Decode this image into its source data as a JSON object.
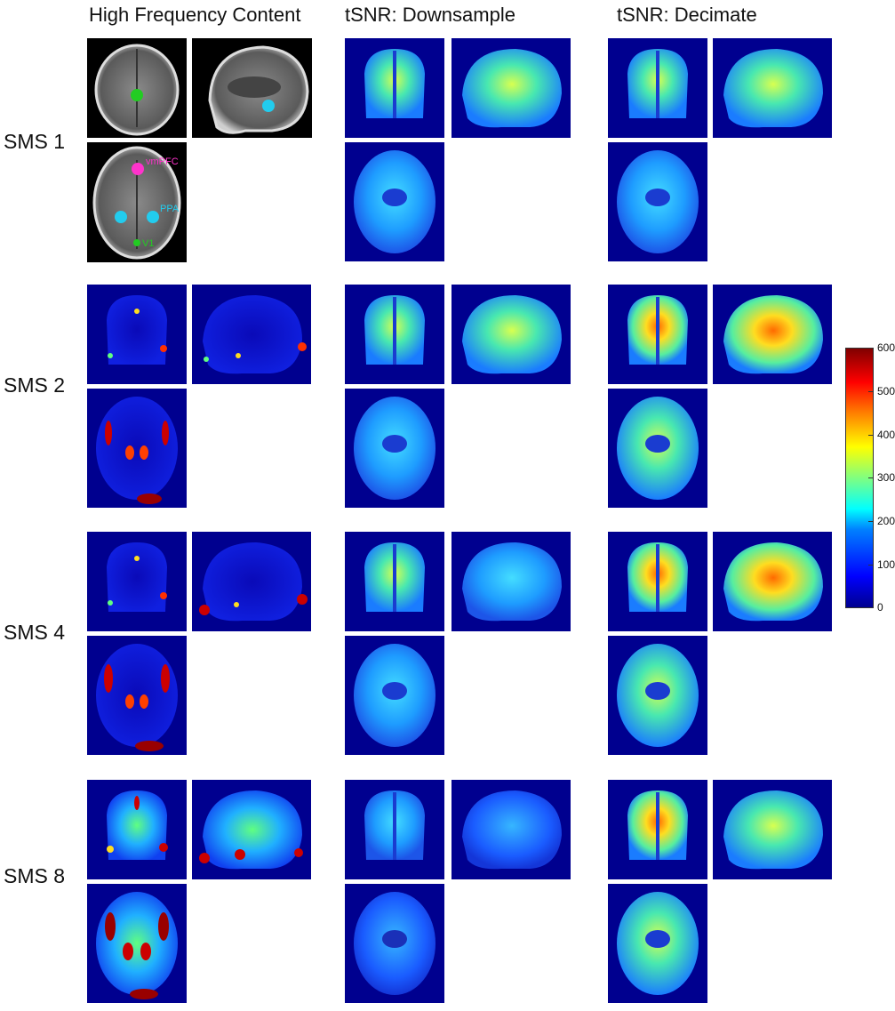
{
  "columns": [
    "High Frequency Content",
    "tSNR: Downsample",
    "tSNR: Decimate"
  ],
  "rows": [
    "SMS 1",
    "SMS 2",
    "SMS 4",
    "SMS 8"
  ],
  "roi_labels": {
    "vmpfc": "vmPFC",
    "ppa": "PPA",
    "v1": "V1"
  },
  "colorbar": {
    "ticks": [
      "600",
      "500",
      "400",
      "300",
      "200",
      "100",
      "0"
    ],
    "min": 0,
    "max": 600
  },
  "colors": {
    "background_blue": "#00008f",
    "vmpfc": "#ff33cc",
    "ppa": "#22ccee",
    "v1": "#22cc22"
  }
}
